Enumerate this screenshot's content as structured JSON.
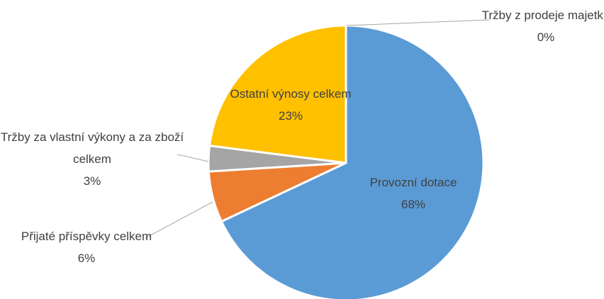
{
  "chart_data": {
    "type": "pie",
    "categories": [
      "Provozní dotace",
      "Přijaté příspěvky celkem",
      "Tržby za vlastní výkony a za zboží celkem",
      "Ostatní výnosy celkem",
      "Tržby z prodeje majetku"
    ],
    "values": [
      68,
      6,
      3,
      23,
      0
    ],
    "value_labels": [
      "68%",
      "6%",
      "3%",
      "23%",
      "0%"
    ],
    "colors": [
      "#5b9bd5",
      "#ed7d31",
      "#a5a5a5",
      "#ffc000",
      "#4472c4"
    ]
  }
}
